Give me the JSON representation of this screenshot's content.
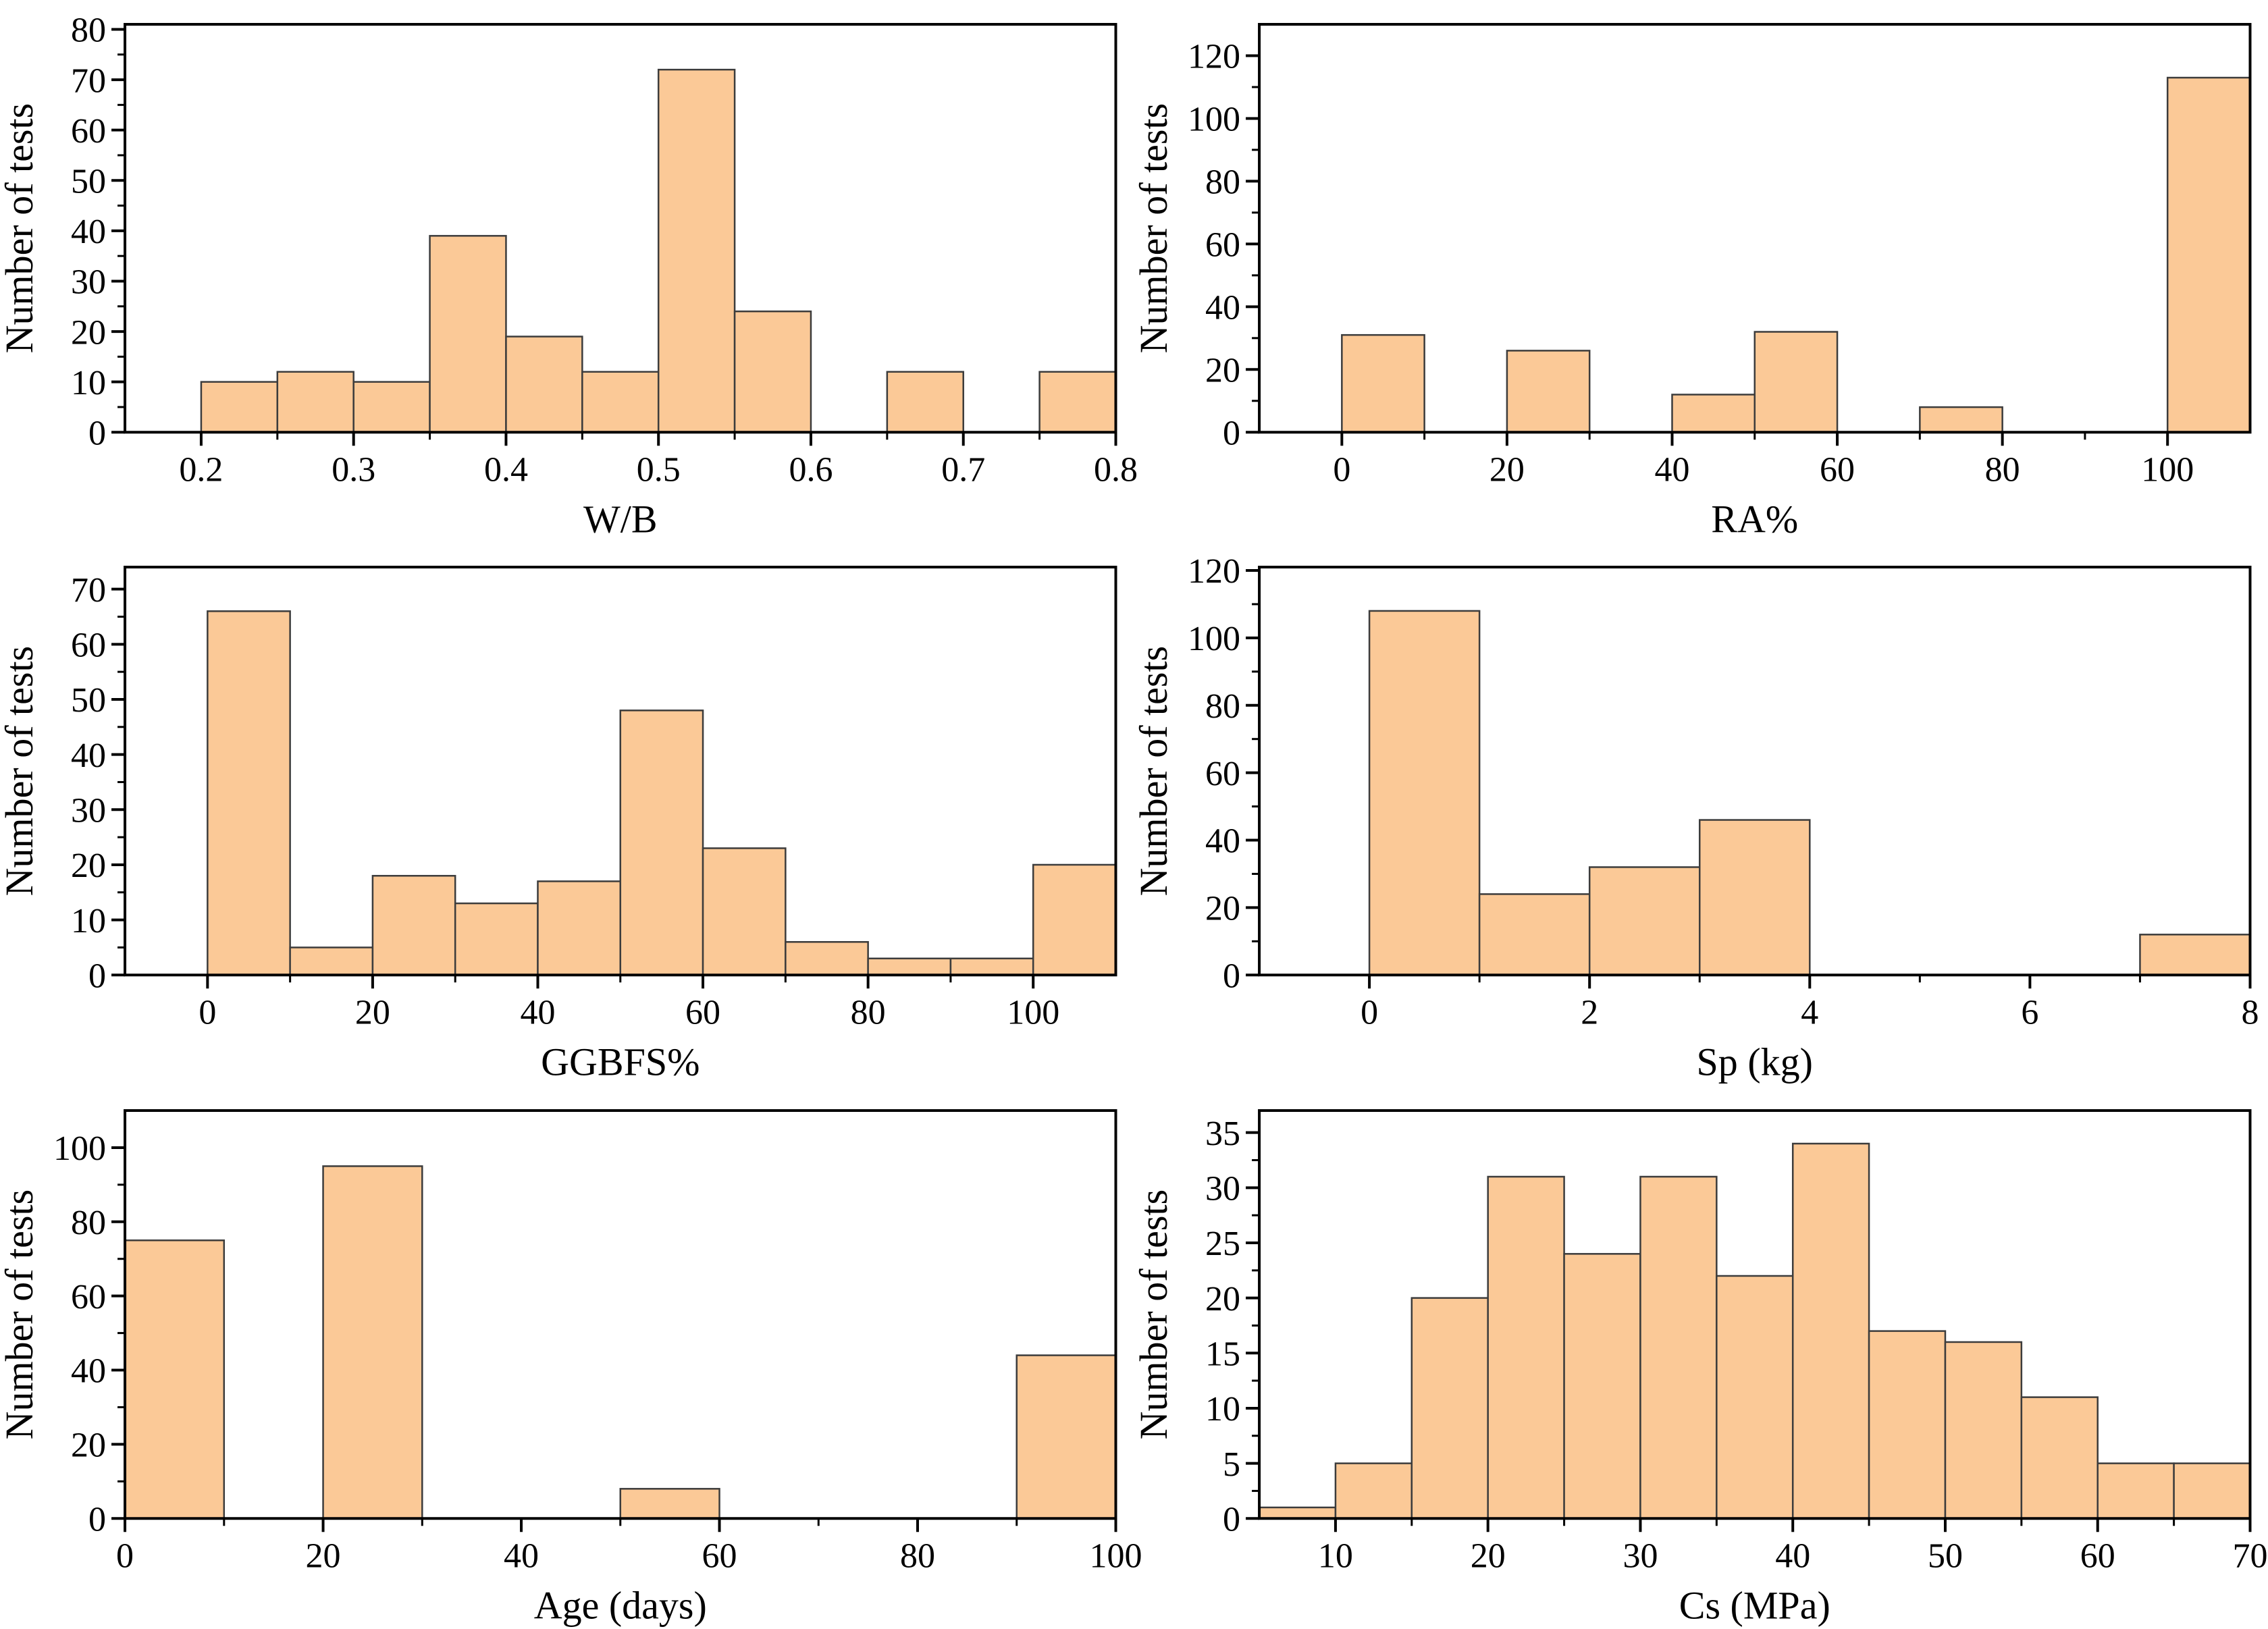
{
  "colors": {
    "background": "#FFFFFF",
    "bar_fill": "#FBC997",
    "bar_edge": "#3C3C3C",
    "axis": "#000000",
    "text": "#000000"
  },
  "chart_data": [
    {
      "id": "wb",
      "type": "bar",
      "subtype": "histogram",
      "title": "",
      "xlabel": "W/B",
      "ylabel": "Number of tests",
      "bin_start": 0.2,
      "bin_width": 0.05,
      "values": [
        10,
        12,
        10,
        39,
        19,
        12,
        72,
        24,
        0,
        12,
        0,
        12
      ],
      "xlim": [
        0.15,
        0.8
      ],
      "ylim": [
        0,
        81
      ],
      "grid": false,
      "legend": false,
      "x_major_ticks": [
        0.2,
        0.3,
        0.4,
        0.5,
        0.6,
        0.7,
        0.8
      ],
      "x_major_labels": [
        "0.2",
        "0.3",
        "0.4",
        "0.5",
        "0.6",
        "0.7",
        "0.8"
      ],
      "x_minor_ticks": [
        0.25,
        0.35,
        0.45,
        0.55,
        0.65,
        0.75
      ],
      "y_major_ticks": [
        0,
        10,
        20,
        30,
        40,
        50,
        60,
        70,
        80
      ],
      "y_major_labels": [
        "0",
        "10",
        "20",
        "30",
        "40",
        "50",
        "60",
        "70",
        "80"
      ],
      "y_minor_ticks": [
        5,
        15,
        25,
        35,
        45,
        55,
        65,
        75
      ]
    },
    {
      "id": "ra",
      "type": "bar",
      "subtype": "histogram",
      "title": "",
      "xlabel": "RA%",
      "ylabel": "Number of tests",
      "bin_start": 0,
      "bin_width": 10,
      "values": [
        31,
        0,
        26,
        0,
        12,
        32,
        0,
        8,
        0,
        0,
        113
      ],
      "xlim": [
        -10,
        110
      ],
      "ylim": [
        0,
        130
      ],
      "grid": false,
      "legend": false,
      "x_major_ticks": [
        0,
        20,
        40,
        60,
        80,
        100
      ],
      "x_major_labels": [
        "0",
        "20",
        "40",
        "60",
        "80",
        "100"
      ],
      "x_minor_ticks": [
        10,
        30,
        50,
        70,
        90
      ],
      "y_major_ticks": [
        0,
        20,
        40,
        60,
        80,
        100,
        120
      ],
      "y_major_labels": [
        "0",
        "20",
        "40",
        "60",
        "80",
        "100",
        "120"
      ],
      "y_minor_ticks": [
        10,
        30,
        50,
        70,
        90,
        110
      ]
    },
    {
      "id": "ggbfs",
      "type": "bar",
      "subtype": "histogram",
      "title": "",
      "xlabel": "GGBFS%",
      "ylabel": "Number of tests",
      "bin_start": 0,
      "bin_width": 10,
      "values": [
        66,
        5,
        18,
        13,
        17,
        48,
        23,
        6,
        3,
        3,
        20
      ],
      "xlim": [
        -10,
        110
      ],
      "ylim": [
        0,
        74
      ],
      "grid": false,
      "legend": false,
      "x_major_ticks": [
        0,
        20,
        40,
        60,
        80,
        100
      ],
      "x_major_labels": [
        "0",
        "20",
        "40",
        "60",
        "80",
        "100"
      ],
      "x_minor_ticks": [
        10,
        30,
        50,
        70,
        90
      ],
      "y_major_ticks": [
        0,
        10,
        20,
        30,
        40,
        50,
        60,
        70
      ],
      "y_major_labels": [
        "0",
        "10",
        "20",
        "30",
        "40",
        "50",
        "60",
        "70"
      ],
      "y_minor_ticks": [
        5,
        15,
        25,
        35,
        45,
        55,
        65
      ]
    },
    {
      "id": "sp",
      "type": "bar",
      "subtype": "histogram",
      "title": "",
      "xlabel": "Sp (kg)",
      "ylabel": "Number of tests",
      "bin_start": 0,
      "bin_width": 1,
      "values": [
        108,
        24,
        32,
        46,
        0,
        0,
        0,
        12
      ],
      "xlim": [
        -1,
        8
      ],
      "ylim": [
        0,
        121
      ],
      "grid": false,
      "legend": false,
      "x_major_ticks": [
        0,
        2,
        4,
        6,
        8
      ],
      "x_major_labels": [
        "0",
        "2",
        "4",
        "6",
        "8"
      ],
      "x_minor_ticks": [
        1,
        3,
        5,
        7
      ],
      "y_major_ticks": [
        0,
        20,
        40,
        60,
        80,
        100,
        120
      ],
      "y_major_labels": [
        "0",
        "20",
        "40",
        "60",
        "80",
        "100",
        "120"
      ],
      "y_minor_ticks": [
        10,
        30,
        50,
        70,
        90,
        110
      ]
    },
    {
      "id": "age",
      "type": "bar",
      "subtype": "histogram",
      "title": "",
      "xlabel": "Age (days)",
      "ylabel": "Number of tests",
      "bin_start": 0,
      "bin_width": 10,
      "values": [
        75,
        0,
        95,
        0,
        0,
        8,
        0,
        0,
        0,
        44
      ],
      "xlim": [
        0,
        100
      ],
      "ylim": [
        0,
        110
      ],
      "grid": false,
      "legend": false,
      "x_major_ticks": [
        0,
        20,
        40,
        60,
        80,
        100
      ],
      "x_major_labels": [
        "0",
        "20",
        "40",
        "60",
        "80",
        "100"
      ],
      "x_minor_ticks": [
        10,
        30,
        50,
        70,
        90
      ],
      "y_major_ticks": [
        0,
        20,
        40,
        60,
        80,
        100
      ],
      "y_major_labels": [
        "0",
        "20",
        "40",
        "60",
        "80",
        "100"
      ],
      "y_minor_ticks": [
        10,
        30,
        50,
        70,
        90
      ]
    },
    {
      "id": "cs",
      "type": "bar",
      "subtype": "histogram",
      "title": "",
      "xlabel": "Cs (MPa)",
      "ylabel": "Number of tests",
      "bin_start": 5,
      "bin_width": 5,
      "values": [
        1,
        5,
        20,
        31,
        24,
        31,
        22,
        34,
        17,
        16,
        11,
        5,
        5
      ],
      "xlim": [
        5,
        70
      ],
      "ylim": [
        0,
        37
      ],
      "grid": false,
      "legend": false,
      "x_major_ticks": [
        10,
        20,
        30,
        40,
        50,
        60,
        70
      ],
      "x_major_labels": [
        "10",
        "20",
        "30",
        "40",
        "50",
        "60",
        "70"
      ],
      "x_minor_ticks": [
        15,
        25,
        35,
        45,
        55,
        65
      ],
      "y_major_ticks": [
        0,
        5,
        10,
        15,
        20,
        25,
        30,
        35
      ],
      "y_major_labels": [
        "0",
        "5",
        "10",
        "15",
        "20",
        "25",
        "30",
        "35"
      ],
      "y_minor_ticks": [
        2.5,
        7.5,
        12.5,
        17.5,
        22.5,
        27.5,
        32.5
      ]
    }
  ]
}
